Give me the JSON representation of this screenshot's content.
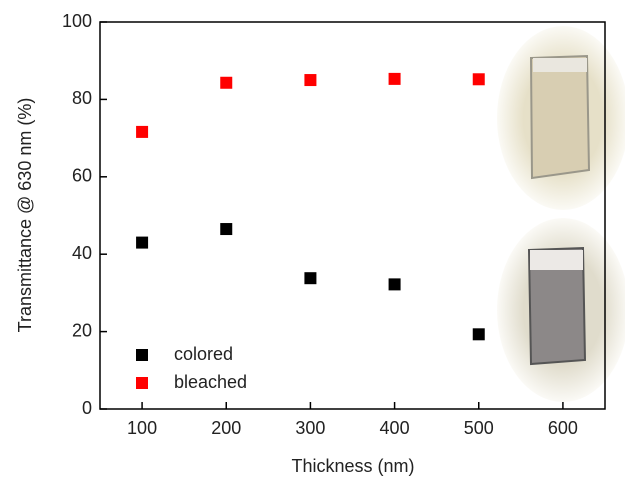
{
  "chart_data": {
    "type": "scatter",
    "xlabel": "Thickness (nm)",
    "ylabel": "Transmittance @ 630 nm (%)",
    "xlim": [
      50,
      650
    ],
    "xticks": [
      100,
      200,
      300,
      400,
      500,
      600
    ],
    "ylim": [
      0,
      100
    ],
    "yticks": [
      0,
      20,
      40,
      60,
      80,
      100
    ],
    "legend": "lower left",
    "series": [
      {
        "name": "colored",
        "color": "#000000",
        "x": [
          100,
          200,
          300,
          400,
          500
        ],
        "values": [
          43.0,
          46.5,
          33.8,
          32.2,
          19.3
        ]
      },
      {
        "name": "bleached",
        "color": "#ff0000",
        "x": [
          100,
          200,
          300,
          400,
          500
        ],
        "values": [
          71.6,
          84.3,
          85.0,
          85.3,
          85.2
        ]
      }
    ]
  }
}
